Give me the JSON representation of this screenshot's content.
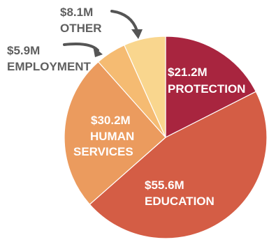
{
  "chart_data": {
    "type": "pie",
    "categories": [
      "PROTECTION",
      "EDUCATION",
      "HUMAN SERVICES",
      "EMPLOYMENT",
      "OTHER"
    ],
    "values": [
      21.2,
      55.6,
      30.2,
      5.9,
      8.1
    ],
    "value_labels": [
      "$21.2M",
      "$55.6M",
      "$30.2M",
      "$5.9M",
      "$8.1M"
    ],
    "colors": [
      "#a8253f",
      "#d45d45",
      "#eb9b5e",
      "#f5bb72",
      "#f9d68e"
    ],
    "start_angle": "12 o'clock",
    "direction": "clockwise",
    "label_lines": {
      "protection": [
        "$21.2M",
        "PROTECTION"
      ],
      "education": [
        "$55.6M",
        "EDUCATION"
      ],
      "human_services": [
        "$30.2M",
        "HUMAN",
        "SERVICES"
      ],
      "employment": [
        "$5.9M",
        "EMPLOYMENT"
      ],
      "other": [
        "$8.1M",
        "OTHER"
      ]
    }
  }
}
